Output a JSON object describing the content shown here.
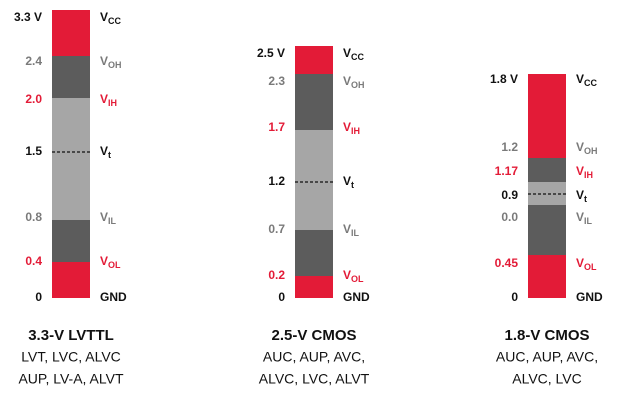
{
  "columns": [
    {
      "title": "3.3-V LVTTL",
      "families": [
        "LVT, LVC, ALVC",
        "AUP, LV-A, ALVT"
      ],
      "levels": [
        {
          "value": "3.3 V",
          "label": "V",
          "sub": "CC",
          "color": "#111111"
        },
        {
          "value": "2.4",
          "label": "V",
          "sub": "OH",
          "color": "#7a7a7a"
        },
        {
          "value": "2.0",
          "label": "V",
          "sub": "IH",
          "color": "#e31b37"
        },
        {
          "value": "1.5",
          "label": "V",
          "sub": "t",
          "color": "#111111"
        },
        {
          "value": "0.8",
          "label": "V",
          "sub": "IL",
          "color": "#7a7a7a"
        },
        {
          "value": "0.4",
          "label": "V",
          "sub": "OL",
          "color": "#e31b37"
        },
        {
          "value": "0",
          "label": "GND",
          "color": "#111111"
        }
      ]
    },
    {
      "title": "2.5-V CMOS",
      "families": [
        "AUC, AUP, AVC,",
        "ALVC, LVC, ALVT"
      ],
      "levels": [
        {
          "value": "2.5 V",
          "label": "V",
          "sub": "CC",
          "color": "#111111"
        },
        {
          "value": "2.3",
          "label": "V",
          "sub": "OH",
          "color": "#7a7a7a"
        },
        {
          "value": "1.7",
          "label": "V",
          "sub": "IH",
          "color": "#e31b37"
        },
        {
          "value": "1.2",
          "label": "V",
          "sub": "t",
          "color": "#111111"
        },
        {
          "value": "0.7",
          "label": "V",
          "sub": "IL",
          "color": "#7a7a7a"
        },
        {
          "value": "0.2",
          "label": "V",
          "sub": "OL",
          "color": "#e31b37"
        },
        {
          "value": "0",
          "label": "GND",
          "color": "#111111"
        }
      ]
    },
    {
      "title": "1.8-V CMOS",
      "families": [
        "AUC, AUP, AVC,",
        "ALVC, LVC"
      ],
      "levels": [
        {
          "value": "1.8 V",
          "label": "V",
          "sub": "CC",
          "color": "#111111"
        },
        {
          "value": "1.2",
          "label": "V",
          "sub": "OH",
          "color": "#7a7a7a"
        },
        {
          "value": "1.17",
          "label": "V",
          "sub": "IH",
          "color": "#e31b37"
        },
        {
          "value": "0.9",
          "label": "V",
          "sub": "t",
          "color": "#111111"
        },
        {
          "value": "0.0",
          "label": "V",
          "sub": "IL",
          "color": "#7a7a7a"
        },
        {
          "value": "0.45",
          "label": "V",
          "sub": "OL",
          "color": "#e31b37"
        },
        {
          "value": "0",
          "label": "GND",
          "color": "#111111"
        }
      ]
    }
  ]
}
